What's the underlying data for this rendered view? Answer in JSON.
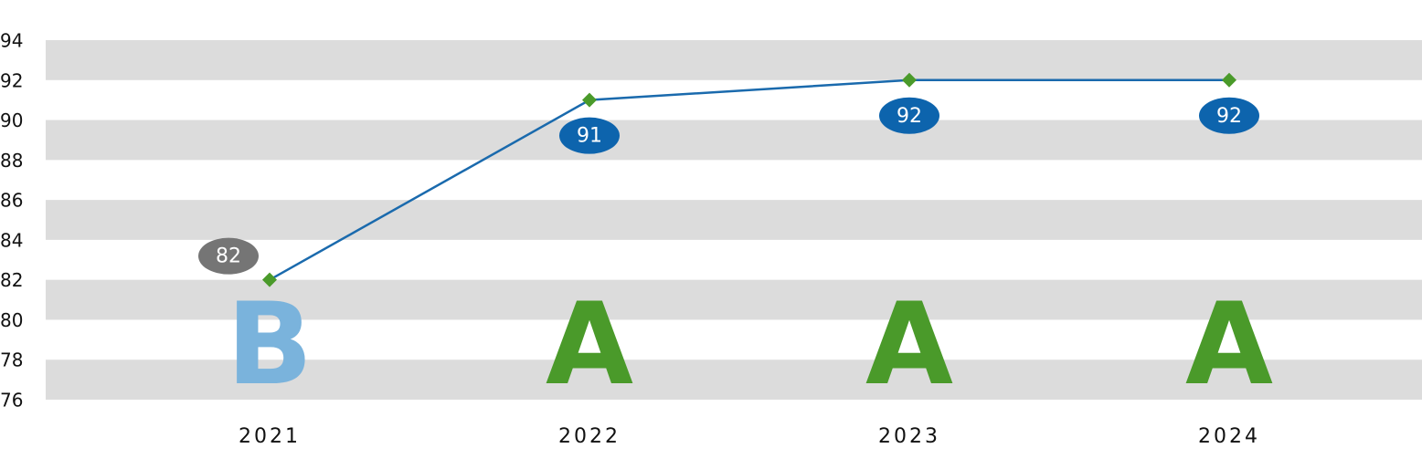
{
  "chart_data": {
    "type": "line",
    "categories": [
      "2021",
      "2022",
      "2023",
      "2024"
    ],
    "series": [
      {
        "color": "#1a6aad",
        "marker_color": "#4a9a2a",
        "values": [
          82,
          91,
          92,
          92
        ]
      }
    ],
    "grades": [
      "B",
      "A",
      "A",
      "A"
    ],
    "grade_colors": [
      "#7ab3dc",
      "#4a9a2a",
      "#4a9a2a",
      "#4a9a2a"
    ],
    "label_colors": [
      "#757575",
      "#0d64ad",
      "#0d64ad",
      "#0d64ad"
    ],
    "ylim": [
      76,
      94
    ],
    "yticks": [
      76,
      78,
      80,
      82,
      84,
      86,
      88,
      90,
      92,
      94
    ],
    "grid": "bands",
    "band_color": "#dcdcdc"
  }
}
